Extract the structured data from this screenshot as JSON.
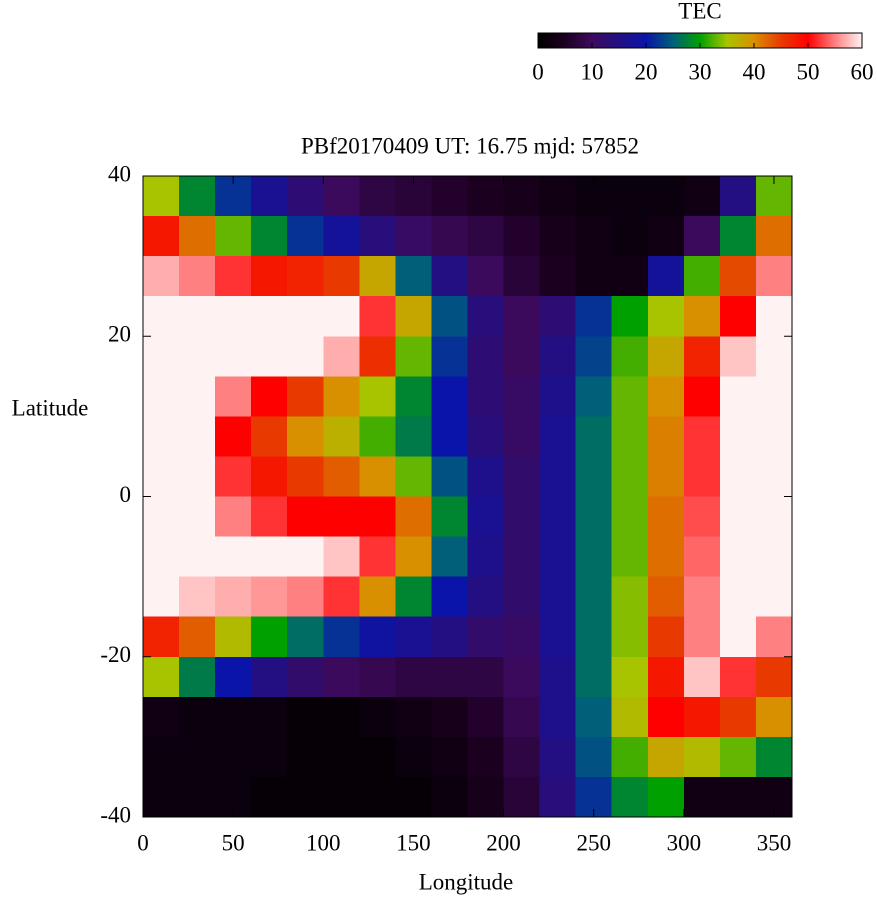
{
  "chart_data": {
    "type": "heatmap",
    "title": "PBf20170409  UT: 16.75  mjd: 57852",
    "xlabel": "Longitude",
    "ylabel": "Latitude",
    "colorbar_label": "TEC",
    "xlim": [
      0,
      360
    ],
    "xticks": [
      0,
      50,
      100,
      150,
      200,
      250,
      300,
      350
    ],
    "ylim": [
      -40,
      40
    ],
    "yticks": [
      -40,
      -20,
      0,
      20,
      40
    ],
    "clim": [
      0,
      60
    ],
    "colorbar_ticks": [
      0,
      10,
      20,
      30,
      40,
      50,
      60
    ],
    "colorscale": [
      {
        "value": 0,
        "color": "#000000"
      },
      {
        "value": 5,
        "color": "#1c0020"
      },
      {
        "value": 10,
        "color": "#3c0a5c"
      },
      {
        "value": 20,
        "color": "#0a14a8"
      },
      {
        "value": 25,
        "color": "#00607a"
      },
      {
        "value": 30,
        "color": "#00a000"
      },
      {
        "value": 35,
        "color": "#a8c400"
      },
      {
        "value": 40,
        "color": "#d89000"
      },
      {
        "value": 45,
        "color": "#e83a00"
      },
      {
        "value": 50,
        "color": "#ff0000"
      },
      {
        "value": 55,
        "color": "#ff8080"
      },
      {
        "value": 60,
        "color": "#fff2f2"
      }
    ],
    "x": [
      10,
      30,
      50,
      70,
      90,
      110,
      130,
      150,
      170,
      190,
      210,
      230,
      250,
      270,
      290,
      310,
      330,
      350
    ],
    "y": [
      37.5,
      32.5,
      27.5,
      22.5,
      17.5,
      12.5,
      7.5,
      2.5,
      -2.5,
      -7.5,
      -12.5,
      -17.5,
      -22.5,
      -27.5,
      -32.5,
      -37.5
    ],
    "values": [
      [
        35,
        28,
        22,
        17,
        13,
        10,
        8,
        7,
        6,
        5,
        4,
        3,
        2,
        2,
        2,
        3,
        15,
        33
      ],
      [
        48,
        42,
        33,
        28,
        22,
        18,
        14,
        11,
        9,
        8,
        6,
        4,
        3,
        2,
        3,
        10,
        28,
        42
      ],
      [
        57,
        55,
        52,
        48,
        47,
        45,
        38,
        25,
        15,
        10,
        7,
        5,
        3,
        3,
        18,
        32,
        44,
        55
      ],
      [
        60,
        60,
        60,
        60,
        60,
        60,
        52,
        38,
        24,
        14,
        10,
        13,
        22,
        30,
        35,
        40,
        50,
        60
      ],
      [
        60,
        60,
        60,
        60,
        60,
        57,
        46,
        33,
        22,
        13,
        10,
        15,
        23,
        32,
        38,
        47,
        58,
        60
      ],
      [
        60,
        60,
        55,
        50,
        45,
        40,
        35,
        28,
        20,
        13,
        11,
        16,
        25,
        33,
        40,
        50,
        60,
        60
      ],
      [
        60,
        60,
        50,
        45,
        40,
        37,
        32,
        27,
        20,
        14,
        11,
        17,
        26,
        33,
        41,
        52,
        60,
        60
      ],
      [
        60,
        60,
        52,
        48,
        45,
        43,
        40,
        33,
        24,
        16,
        12,
        17,
        26,
        33,
        41,
        52,
        60,
        60
      ],
      [
        60,
        60,
        55,
        52,
        50,
        50,
        50,
        42,
        28,
        17,
        12,
        17,
        26,
        33,
        42,
        53,
        60,
        60
      ],
      [
        60,
        60,
        60,
        60,
        60,
        58,
        52,
        40,
        25,
        16,
        12,
        17,
        26,
        33,
        42,
        54,
        60,
        60
      ],
      [
        60,
        58,
        57,
        56,
        55,
        52,
        40,
        28,
        20,
        15,
        12,
        17,
        26,
        34,
        43,
        55,
        60,
        60
      ],
      [
        47,
        43,
        36,
        30,
        26,
        22,
        19,
        17,
        15,
        12,
        11,
        17,
        26,
        34,
        45,
        55,
        60,
        55
      ],
      [
        35,
        27,
        20,
        15,
        12,
        10,
        9,
        8,
        8,
        8,
        10,
        16,
        26,
        35,
        48,
        58,
        52,
        45
      ],
      [
        3,
        2,
        2,
        2,
        1,
        1,
        2,
        3,
        4,
        6,
        9,
        16,
        25,
        36,
        50,
        48,
        45,
        40
      ],
      [
        2,
        2,
        2,
        2,
        1,
        1,
        1,
        2,
        3,
        5,
        8,
        15,
        24,
        32,
        38,
        36,
        33,
        28
      ],
      [
        2,
        2,
        2,
        1,
        1,
        1,
        1,
        1,
        2,
        4,
        7,
        14,
        22,
        28,
        30,
        3,
        3,
        3
      ]
    ]
  }
}
